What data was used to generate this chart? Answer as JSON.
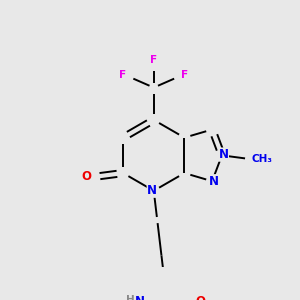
{
  "background_color": "#e8e8e8",
  "bond_color": "#000000",
  "atom_colors": {
    "N": "#0000ee",
    "O": "#ee0000",
    "F": "#ee00ee",
    "H": "#888888",
    "C": "#000000"
  },
  "lw": 1.4,
  "fs_large": 8.5,
  "fs_small": 7.5
}
